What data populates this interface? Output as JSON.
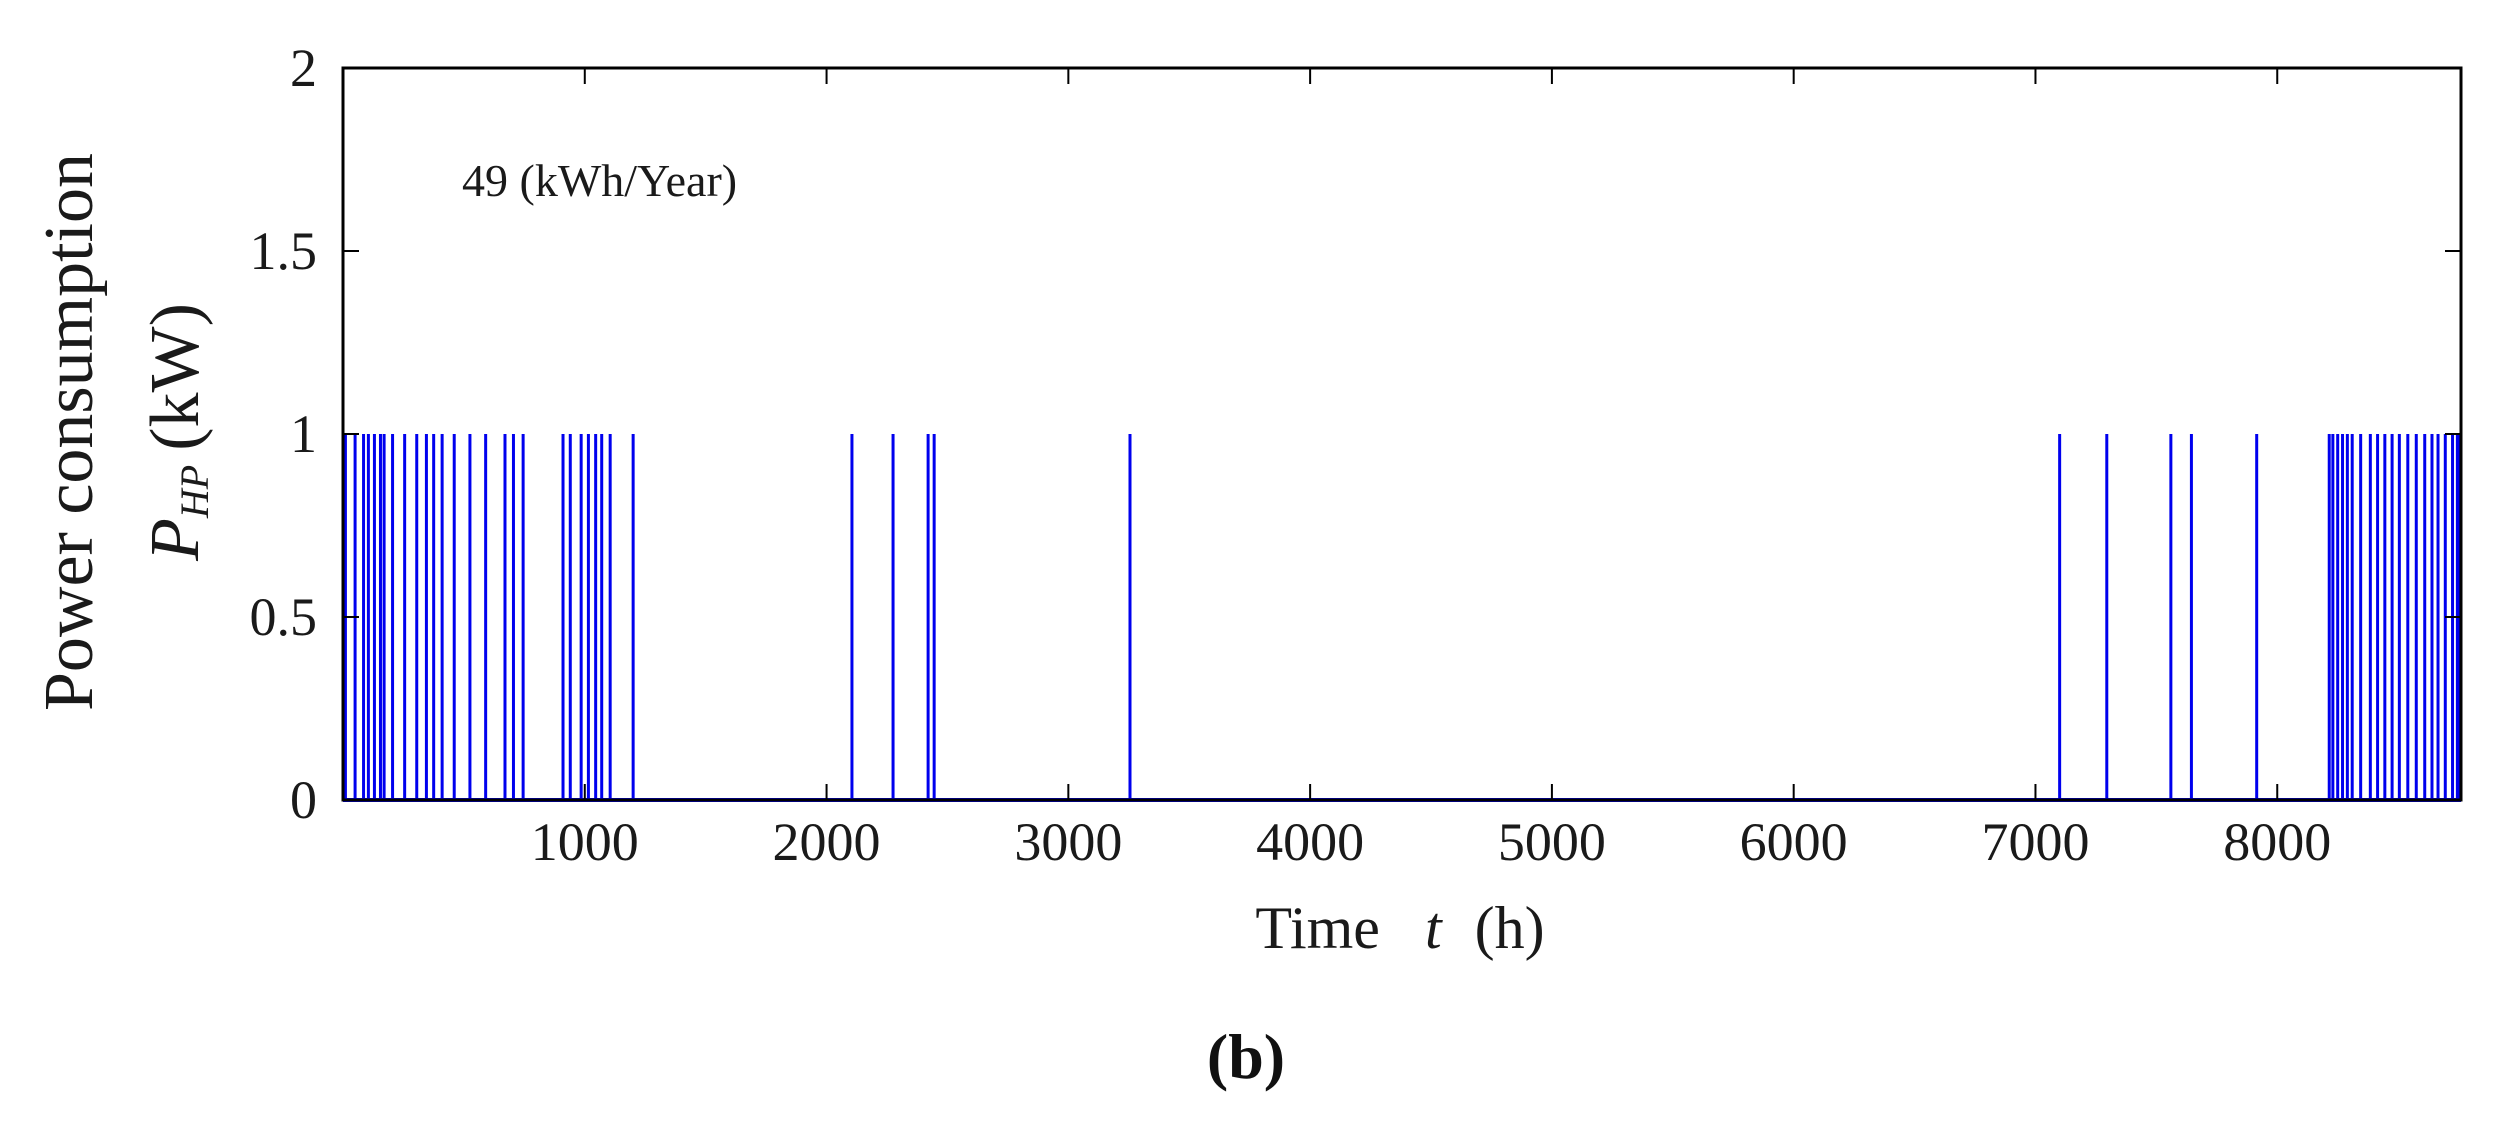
{
  "chart_data": {
    "type": "line",
    "xlabel_text": "Time",
    "xlabel_var": "t",
    "xlabel_unit": "(h)",
    "ylabel_line1": "Power consumption",
    "ylabel_var": "P",
    "ylabel_sub": "HP",
    "ylabel_unit": "(kW)",
    "annotation": "49 (kWh/Year)",
    "panel_label": "(b)",
    "xlim": [
      0,
      8760
    ],
    "ylim": [
      0,
      2
    ],
    "x_ticks": [
      1000,
      2000,
      3000,
      4000,
      5000,
      6000,
      7000,
      8000
    ],
    "y_ticks": [
      0,
      0.5,
      1,
      1.5,
      2
    ],
    "y_tick_labels": [
      "0",
      "0.5",
      "1",
      "1.5",
      "2"
    ],
    "line_color": "#0000ee",
    "series": [
      {
        "on_hours_value": 1,
        "off_value": 0,
        "on_hours": [
          10,
          50,
          85,
          105,
          130,
          155,
          170,
          205,
          255,
          305,
          345,
          375,
          410,
          460,
          525,
          590,
          670,
          705,
          745,
          910,
          940,
          985,
          1015,
          1045,
          1070,
          1105,
          1200,
          2105,
          2275,
          2420,
          2445,
          3255,
          7100,
          7295,
          7560,
          7645,
          7915,
          8215,
          8230,
          8250,
          8270,
          8290,
          8310,
          8345,
          8385,
          8415,
          8445,
          8475,
          8505,
          8540,
          8575,
          8610,
          8640,
          8665,
          8695,
          8725,
          8745,
          8755
        ]
      }
    ]
  }
}
